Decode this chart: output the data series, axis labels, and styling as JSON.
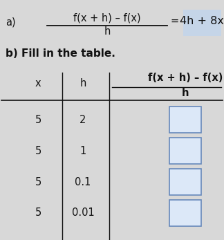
{
  "background_color": "#d8d8d8",
  "part_a_label": "a)",
  "part_a_numerator": "f(x + h) – f(x)",
  "part_a_denominator": "h",
  "part_a_equals": "=",
  "part_a_rhs": "4h + 8x",
  "part_a_rhs_box_color": "#c5d5e8",
  "part_b_label": "b) Fill in the table.",
  "col_x_label": "x",
  "col_h_label": "h",
  "col_frac_top": "f(x + h) – f(x)",
  "col_frac_bot": "h",
  "table_x": [
    "5",
    "5",
    "5",
    "5"
  ],
  "table_h": [
    "2",
    "1",
    "0.1",
    "0.01"
  ],
  "answer_box_color": "#dce8f8",
  "answer_box_border": "#6688bb",
  "font_color": "#111111",
  "label_font_size": 10.5,
  "data_font_size": 10.5,
  "header_font_size": 10.5,
  "bold_font_size": 10.5,
  "figwidth": 3.24,
  "figheight": 3.47,
  "dpi": 100
}
